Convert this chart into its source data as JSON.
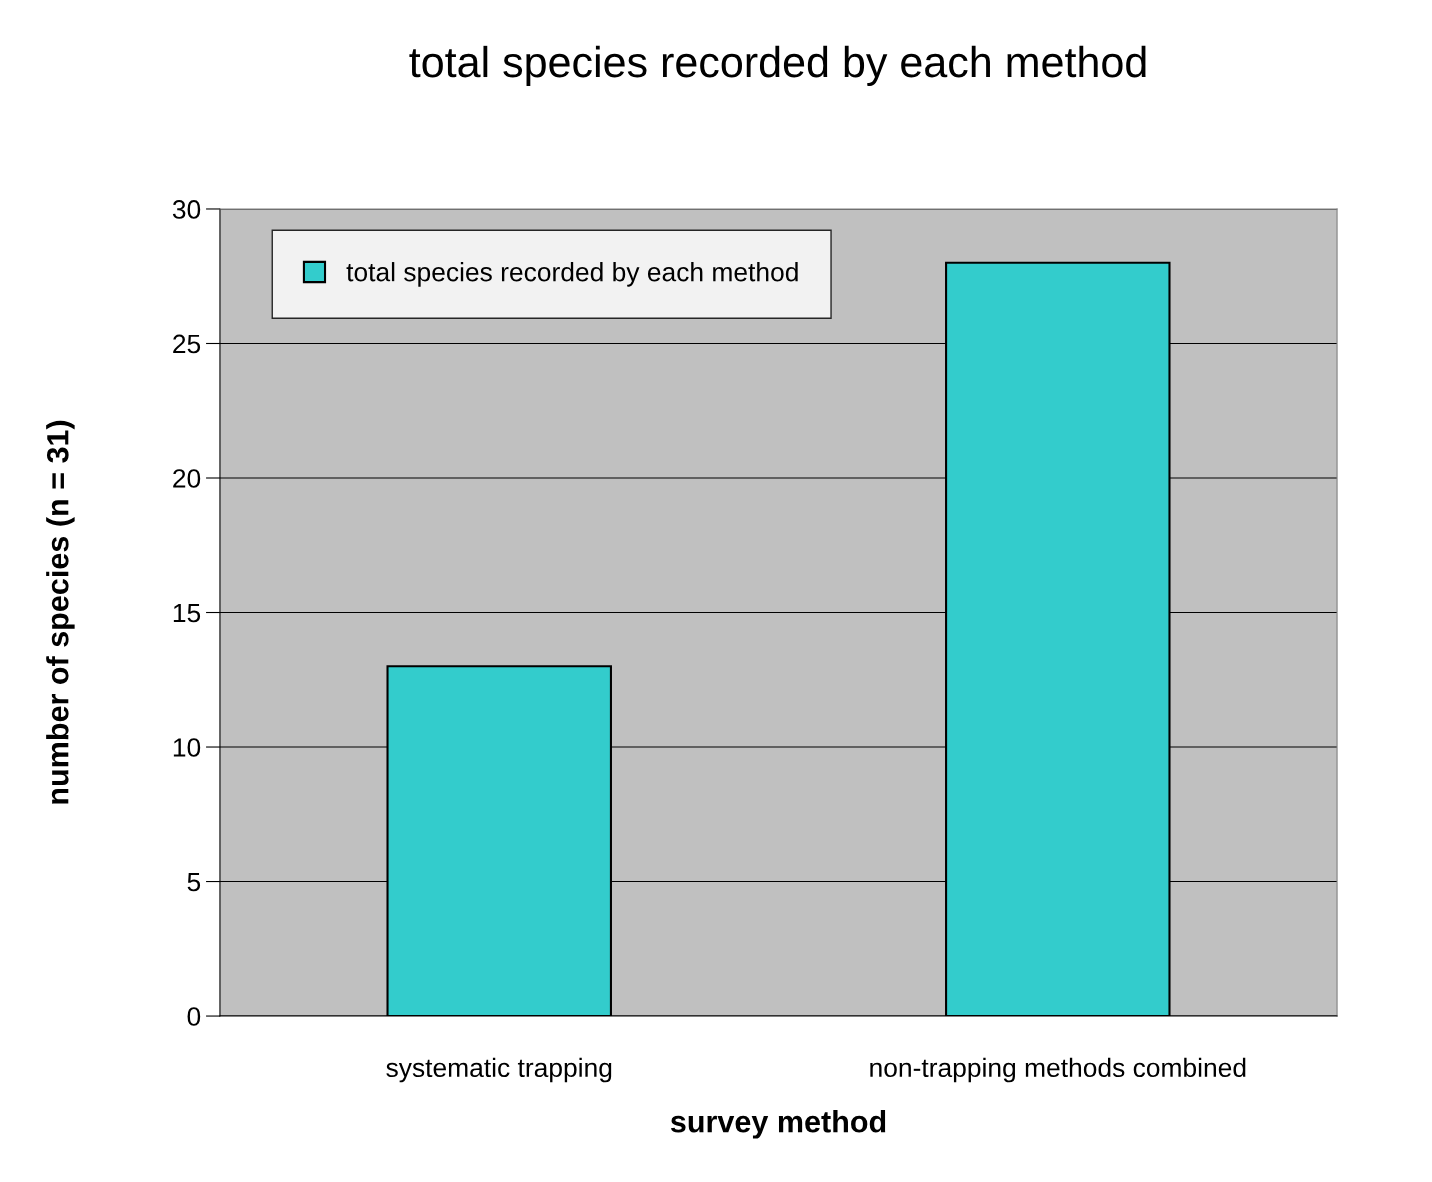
{
  "chart_data": {
    "type": "bar",
    "title": "total species recorded by each method",
    "xlabel": "survey method",
    "ylabel": "number of species (n = 31)",
    "categories": [
      "systematic trapping",
      "non-trapping methods combined"
    ],
    "series": [
      {
        "name": "total species recorded by each method",
        "color": "#33cccc",
        "values": [
          13,
          28
        ]
      }
    ],
    "ylim": [
      0,
      30
    ],
    "yticks": [
      0,
      5,
      10,
      15,
      20,
      25,
      30
    ],
    "grid": "y",
    "legend": "top left"
  }
}
